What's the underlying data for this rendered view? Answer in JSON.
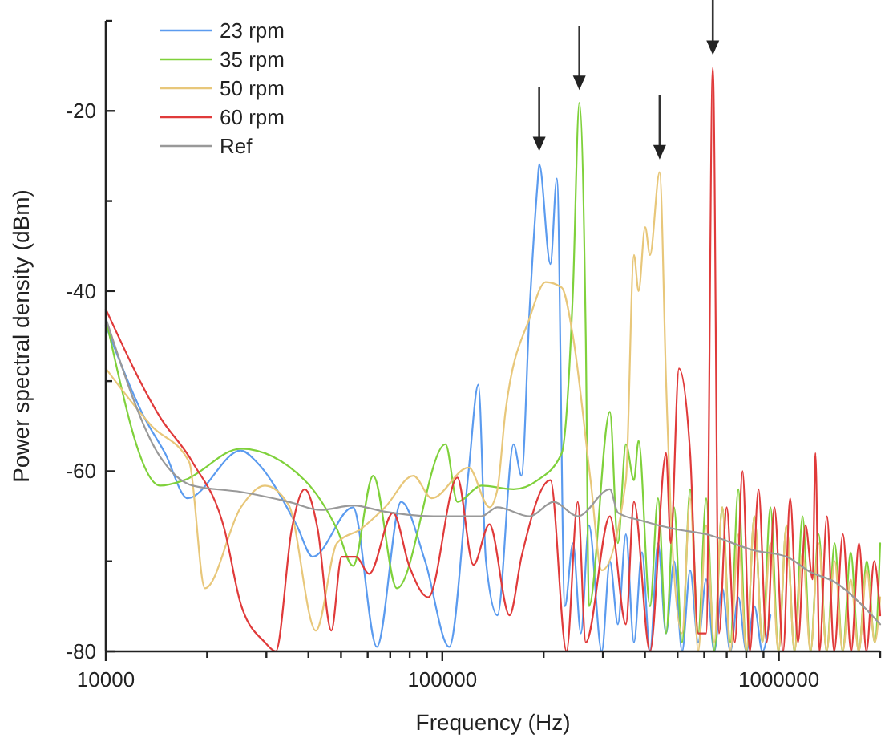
{
  "chart_data": {
    "type": "line",
    "xlabel": "Frequency (Hz)",
    "ylabel": "Power spectral density (dBm)",
    "log": "x",
    "legend": "top left",
    "grid": false,
    "line_style": "solid",
    "marker": "none",
    "xlim": [
      10000,
      2000000
    ],
    "xticks": [
      10000,
      {
        "value": 20000,
        "label": null
      },
      {
        "value": 30000,
        "label": null
      },
      {
        "value": 40000,
        "label": null
      },
      {
        "value": 50000,
        "label": null
      },
      {
        "value": 60000,
        "label": null
      },
      {
        "value": 70000,
        "label": null
      },
      {
        "value": 80000,
        "label": null
      },
      {
        "value": 90000,
        "label": null
      },
      100000,
      {
        "value": 200000,
        "label": null
      },
      {
        "value": 300000,
        "label": null
      },
      {
        "value": 400000,
        "label": null
      },
      {
        "value": 500000,
        "label": null
      },
      {
        "value": 600000,
        "label": null
      },
      {
        "value": 700000,
        "label": null
      },
      {
        "value": 800000,
        "label": null
      },
      {
        "value": 900000,
        "label": null
      },
      1000000,
      {
        "value": 2000000,
        "label": null
      }
    ],
    "ylim": [
      -80,
      -10
    ],
    "yticks": [
      -80,
      {
        "value": -70,
        "label": null
      },
      -60,
      {
        "value": -50,
        "label": null
      },
      -40,
      {
        "value": -30,
        "label": null
      },
      -20,
      {
        "value": -10,
        "label": null
      }
    ],
    "series": [
      {
        "name": "23 rpm",
        "color": "#5b9bef",
        "x": [
          10000,
          13000,
          15000,
          17500,
          25200,
          28100,
          36900,
          41200,
          54300,
          63900,
          75400,
          88900,
          104900,
          119700,
          127900,
          134800,
          145800,
          162800,
          171900,
          181700,
          191900,
          194000,
          209500,
          219000,
          231300,
          244400,
          258100,
          272700,
          297700,
          314700,
          332400,
          351200,
          371000,
          392000,
          414100,
          437500,
          462200,
          488300,
          515800,
          545000,
          575800,
          608300,
          642600,
          679000,
          717300,
          757800,
          800600,
          845800,
          893500,
          944000
        ],
        "values": [
          -43.8,
          -54,
          -58,
          -63,
          -57.7,
          -59,
          -66,
          -69.5,
          -64,
          -79.5,
          -63.4,
          -70,
          -79.5,
          -60,
          -50.4,
          -70,
          -76,
          -57,
          -60.5,
          -42,
          -28,
          -25.9,
          -37,
          -27.5,
          -75,
          -68,
          -78,
          -66,
          -80,
          -70,
          -77,
          -67,
          -79,
          -69,
          -80,
          -68,
          -78,
          -70,
          -80,
          -71,
          -79,
          -72,
          -80,
          -73,
          -80,
          -74,
          -80,
          -75,
          -80,
          -76
        ]
      },
      {
        "name": "35 rpm",
        "color": "#7fd13b",
        "x": [
          10000,
          14500,
          17100,
          25200,
          39000,
          48600,
          54300,
          62300,
          73300,
          102200,
          110800,
          130700,
          162800,
          191900,
          226300,
          244400,
          255300,
          266800,
          272700,
          314700,
          332400,
          351200,
          371000,
          383000,
          414100,
          437500,
          462200,
          488300,
          515800,
          545000,
          575800,
          608300,
          642600,
          679000,
          717300,
          757800,
          800600,
          845800,
          893500,
          944000,
          997300,
          1054000,
          1113000,
          1176000,
          1242000,
          1313000,
          1387000,
          1465000,
          1548000,
          1635000,
          1727000,
          1825000,
          1928000,
          2000000
        ],
        "values": [
          -43,
          -61.6,
          -61,
          -57.5,
          -61,
          -66.4,
          -70.5,
          -60.5,
          -73,
          -57,
          -63.4,
          -61.6,
          -62,
          -61,
          -58,
          -40,
          -19.1,
          -45,
          -75,
          -53.4,
          -68,
          -57,
          -61,
          -56.6,
          -75,
          -63,
          -78,
          -64,
          -79,
          -62,
          -78,
          -63,
          -80,
          -64,
          -79,
          -62,
          -80,
          -65,
          -79,
          -64,
          -80,
          -66,
          -80,
          -65,
          -80,
          -67,
          -80,
          -68,
          -80,
          -69,
          -80,
          -70,
          -79,
          -68
        ]
      },
      {
        "name": "50 rpm",
        "color": "#e8c77a",
        "x": [
          10000,
          13700,
          17700,
          19700,
          25200,
          29700,
          35000,
          42100,
          48600,
          57300,
          67600,
          82000,
          93000,
          119700,
          138000,
          145800,
          154000,
          181700,
          202800,
          226300,
          244400,
          275700,
          297700,
          351200,
          371000,
          383000,
          400600,
          414100,
          442300,
          462200,
          477100,
          515800,
          545000,
          575800,
          608300,
          642600,
          679000,
          717300,
          757800,
          800600,
          845800,
          893500,
          944000,
          997300,
          1054000,
          1113000,
          1176000,
          1242000,
          1313000,
          1387000,
          1465000,
          1548000,
          1635000,
          1727000,
          1825000,
          1928000,
          2000000
        ],
        "values": [
          -48.6,
          -55,
          -59,
          -73,
          -64,
          -61.6,
          -63.8,
          -77.7,
          -68,
          -66.4,
          -64,
          -60.5,
          -63,
          -59.6,
          -64,
          -62,
          -53.4,
          -43,
          -39,
          -39.6,
          -45,
          -61,
          -71,
          -61,
          -36,
          -40,
          -32.9,
          -36,
          -26.8,
          -50,
          -64.6,
          -78,
          -63,
          -80,
          -66,
          -79,
          -64,
          -80,
          -67,
          -80,
          -65,
          -79,
          -68,
          -80,
          -66,
          -80,
          -69,
          -80,
          -68,
          -80,
          -70,
          -80,
          -72,
          -80,
          -71,
          -79,
          -74
        ]
      },
      {
        "name": "60 rpm",
        "color": "#e03a3a",
        "x": [
          10000,
          14500,
          18100,
          22500,
          25200,
          29700,
          32000,
          35700,
          39000,
          42600,
          46800,
          50200,
          55400,
          60600,
          71400,
          79700,
          90800,
          110800,
          123700,
          138000,
          158400,
          171900,
          209500,
          233900,
          252600,
          266800,
          314700,
          351200,
          371000,
          414100,
          462200,
          477100,
          504800,
          545000,
          575800,
          608300,
          636400,
          664000,
          700000,
          740000,
          780000,
          820000,
          870000,
          920000,
          970000,
          1030000,
          1080000,
          1140000,
          1200000,
          1260000,
          1284000,
          1320000,
          1390000,
          1460000,
          1550000,
          1640000,
          1730000,
          1820000,
          1920000,
          2000000
        ],
        "values": [
          -42,
          -54,
          -59,
          -66.4,
          -74.8,
          -79,
          -80,
          -66.4,
          -62,
          -66.4,
          -77.7,
          -69.5,
          -69.5,
          -71.4,
          -64.6,
          -70.5,
          -74,
          -60.7,
          -70.4,
          -65.9,
          -76,
          -69.5,
          -61,
          -80,
          -63.4,
          -79,
          -65,
          -77,
          -63.4,
          -80,
          -58,
          -68,
          -48.6,
          -58,
          -78,
          -78,
          -15.2,
          -78,
          -64,
          -79,
          -60,
          -80,
          -62,
          -79,
          -64,
          -80,
          -63,
          -79,
          -66,
          -72,
          -58,
          -80,
          -65,
          -80,
          -67,
          -80,
          -68,
          -80,
          -70,
          -76
        ]
      },
      {
        "name": "Ref",
        "color": "#999999",
        "x": [
          10000,
          14500,
          18100,
          25200,
          35000,
          43600,
          54300,
          67600,
          94000,
          130700,
          145800,
          181700,
          214200,
          252600,
          314700,
          332400,
          392000,
          488300,
          608300,
          845800,
          1054000,
          1242000,
          1465000,
          1825000,
          2000000
        ],
        "values": [
          -43,
          -58.4,
          -61.6,
          -62.3,
          -63.4,
          -64.3,
          -63.8,
          -64.5,
          -65,
          -65,
          -64,
          -65,
          -63.4,
          -65,
          -62,
          -64.6,
          -65.5,
          -66.4,
          -67,
          -68.8,
          -69.5,
          -71.2,
          -72.3,
          -75.4,
          -77
        ]
      }
    ]
  }
}
